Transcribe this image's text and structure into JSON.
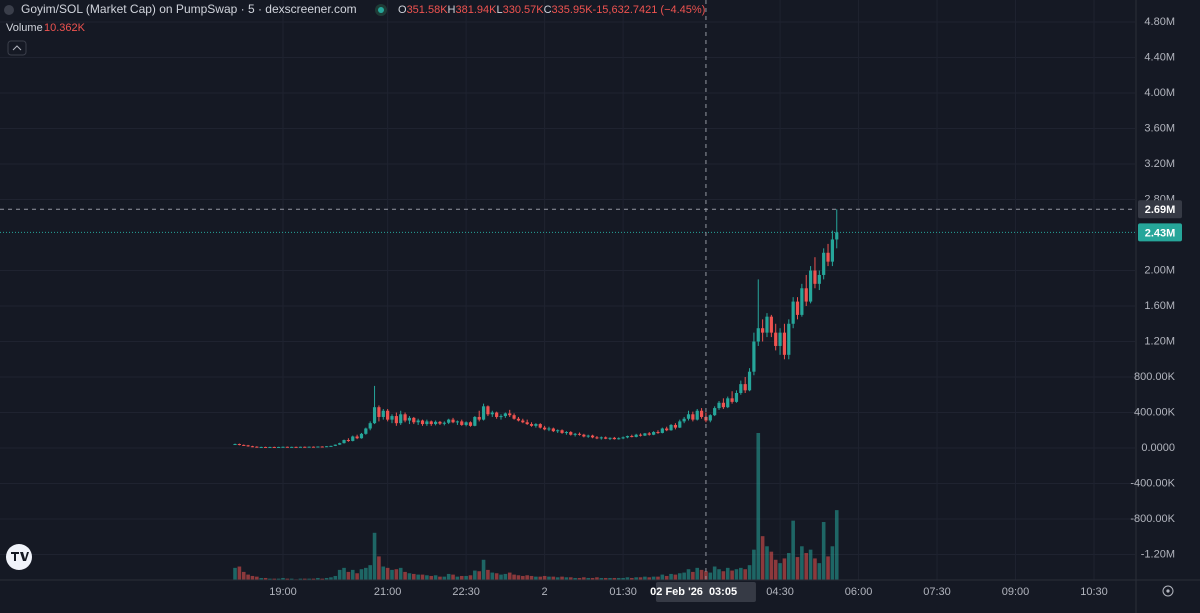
{
  "chart_data": {
    "type": "candlestick",
    "title": "Goyim/SOL (Market Cap) on PumpSwap · 5 · dexscreener.com",
    "ohlc": [
      {
        "label": "O",
        "value": "351.58K"
      },
      {
        "label": "H",
        "value": "381.94K"
      },
      {
        "label": "L",
        "value": "330.57K"
      },
      {
        "label": "C",
        "value": "335.95K"
      }
    ],
    "change": "-15,632.7421 (−4.45%)",
    "volume_label": "Volume",
    "volume_value": "10.362K",
    "up_color": "#26a69a",
    "down_color": "#ef5350",
    "grid": true,
    "xlim": [
      -264.5,
      1037
    ],
    "xticks": [
      {
        "value": 60,
        "label": "19:00"
      },
      {
        "value": 180,
        "label": "21:00"
      },
      {
        "value": 270,
        "label": "22:30"
      },
      {
        "value": 360,
        "label": "2"
      },
      {
        "value": 450,
        "label": "01:30"
      },
      {
        "value": 630,
        "label": "04:30"
      },
      {
        "value": 720,
        "label": "06:00"
      },
      {
        "value": 810,
        "label": "07:30"
      },
      {
        "value": 900,
        "label": "09:00"
      },
      {
        "value": 990,
        "label": "10:30"
      }
    ],
    "ylim": [
      -1487,
      5048
    ],
    "yticks": [
      {
        "value": 4800,
        "label": "4.80M"
      },
      {
        "value": 4400,
        "label": "4.40M"
      },
      {
        "value": 4000,
        "label": "4.00M"
      },
      {
        "value": 3600,
        "label": "3.60M"
      },
      {
        "value": 3200,
        "label": "3.20M"
      },
      {
        "value": 2800,
        "label": "2.80M"
      },
      {
        "value": 2000,
        "label": "2.00M"
      },
      {
        "value": 1600,
        "label": "1.60M"
      },
      {
        "value": 1200,
        "label": "1.20M"
      },
      {
        "value": 800,
        "label": "800.00K"
      },
      {
        "value": 400,
        "label": "400.00K"
      },
      {
        "value": 0,
        "label": "0.0000"
      },
      {
        "value": -400,
        "label": "-400.00K"
      },
      {
        "value": -800,
        "label": "-800.00K"
      },
      {
        "value": -1200,
        "label": "-1.20M"
      }
    ],
    "crosshair": {
      "x": 545,
      "y": 2690,
      "date_label": "02 Feb '26",
      "time_label": "03:05",
      "price_label": "2.69M"
    },
    "last_price": {
      "value": 2430,
      "label": "2.43M"
    },
    "candles": [
      [
        5,
        40,
        50,
        35,
        45,
        1.8
      ],
      [
        10,
        45,
        50,
        30,
        35,
        2.0
      ],
      [
        15,
        35,
        40,
        25,
        30,
        1.2
      ],
      [
        20,
        30,
        35,
        15,
        20,
        0.8
      ],
      [
        25,
        20,
        25,
        10,
        15,
        0.6
      ],
      [
        30,
        15,
        20,
        5,
        10,
        0.5
      ],
      [
        35,
        10,
        15,
        5,
        12,
        0.3
      ],
      [
        40,
        12,
        15,
        8,
        10,
        0.3
      ],
      [
        45,
        10,
        14,
        6,
        12,
        0.2
      ],
      [
        50,
        12,
        15,
        8,
        10,
        0.2
      ],
      [
        55,
        10,
        14,
        7,
        12,
        0.2
      ],
      [
        60,
        12,
        16,
        9,
        14,
        0.3
      ],
      [
        65,
        14,
        16,
        10,
        12,
        0.2
      ],
      [
        70,
        12,
        15,
        9,
        13,
        0.2
      ],
      [
        75,
        13,
        16,
        10,
        12,
        0.1
      ],
      [
        80,
        12,
        15,
        9,
        14,
        0.2
      ],
      [
        85,
        14,
        17,
        11,
        13,
        0.2
      ],
      [
        90,
        13,
        16,
        10,
        15,
        0.2
      ],
      [
        95,
        15,
        18,
        12,
        14,
        0.2
      ],
      [
        100,
        14,
        18,
        12,
        17,
        0.3
      ],
      [
        105,
        17,
        20,
        14,
        16,
        0.2
      ],
      [
        110,
        16,
        22,
        14,
        20,
        0.3
      ],
      [
        115,
        20,
        26,
        18,
        24,
        0.4
      ],
      [
        120,
        24,
        40,
        22,
        38,
        0.6
      ],
      [
        125,
        38,
        60,
        35,
        55,
        1.5
      ],
      [
        130,
        55,
        95,
        50,
        90,
        1.8
      ],
      [
        135,
        90,
        110,
        70,
        80,
        1.2
      ],
      [
        140,
        80,
        140,
        75,
        130,
        1.5
      ],
      [
        145,
        130,
        150,
        100,
        110,
        1.0
      ],
      [
        150,
        110,
        170,
        105,
        160,
        1.6
      ],
      [
        155,
        160,
        230,
        150,
        220,
        1.8
      ],
      [
        160,
        220,
        300,
        200,
        280,
        2.2
      ],
      [
        165,
        280,
        700,
        270,
        460,
        7.0
      ],
      [
        170,
        460,
        480,
        300,
        350,
        3.5
      ],
      [
        175,
        350,
        440,
        320,
        420,
        2.0
      ],
      [
        180,
        420,
        440,
        300,
        320,
        1.8
      ],
      [
        185,
        320,
        380,
        280,
        360,
        1.5
      ],
      [
        190,
        360,
        400,
        250,
        280,
        1.6
      ],
      [
        195,
        280,
        420,
        260,
        380,
        1.8
      ],
      [
        200,
        380,
        400,
        290,
        310,
        1.2
      ],
      [
        205,
        310,
        360,
        270,
        340,
        1.0
      ],
      [
        210,
        340,
        350,
        270,
        290,
        0.9
      ],
      [
        215,
        290,
        330,
        260,
        310,
        0.8
      ],
      [
        220,
        310,
        320,
        250,
        270,
        0.8
      ],
      [
        225,
        270,
        320,
        250,
        300,
        0.7
      ],
      [
        230,
        300,
        310,
        250,
        270,
        0.6
      ],
      [
        235,
        270,
        310,
        255,
        295,
        0.7
      ],
      [
        240,
        295,
        305,
        260,
        275,
        0.5
      ],
      [
        245,
        275,
        300,
        255,
        285,
        0.5
      ],
      [
        250,
        285,
        330,
        270,
        320,
        0.9
      ],
      [
        255,
        320,
        340,
        280,
        290,
        0.8
      ],
      [
        260,
        290,
        310,
        260,
        300,
        0.5
      ],
      [
        265,
        300,
        320,
        250,
        260,
        0.6
      ],
      [
        270,
        260,
        300,
        245,
        290,
        0.6
      ],
      [
        275,
        290,
        300,
        240,
        250,
        0.7
      ],
      [
        280,
        250,
        360,
        245,
        350,
        1.4
      ],
      [
        285,
        350,
        420,
        300,
        320,
        1.3
      ],
      [
        290,
        320,
        500,
        310,
        470,
        3.0
      ],
      [
        295,
        470,
        480,
        360,
        380,
        1.5
      ],
      [
        300,
        380,
        420,
        350,
        400,
        1.1
      ],
      [
        305,
        400,
        410,
        330,
        350,
        1.0
      ],
      [
        310,
        350,
        380,
        320,
        360,
        0.8
      ],
      [
        315,
        360,
        400,
        340,
        390,
        0.9
      ],
      [
        320,
        390,
        430,
        350,
        370,
        1.1
      ],
      [
        325,
        370,
        390,
        320,
        330,
        0.8
      ],
      [
        330,
        330,
        350,
        300,
        310,
        0.7
      ],
      [
        335,
        310,
        330,
        280,
        290,
        0.6
      ],
      [
        340,
        290,
        320,
        260,
        270,
        0.7
      ],
      [
        345,
        270,
        290,
        240,
        250,
        0.6
      ],
      [
        350,
        250,
        280,
        230,
        270,
        0.5
      ],
      [
        355,
        270,
        280,
        220,
        230,
        0.5
      ],
      [
        360,
        230,
        250,
        200,
        210,
        0.6
      ],
      [
        365,
        210,
        240,
        190,
        220,
        0.5
      ],
      [
        370,
        220,
        230,
        180,
        190,
        0.5
      ],
      [
        375,
        190,
        210,
        170,
        200,
        0.4
      ],
      [
        380,
        200,
        210,
        160,
        170,
        0.5
      ],
      [
        385,
        170,
        190,
        150,
        180,
        0.4
      ],
      [
        390,
        180,
        190,
        140,
        150,
        0.4
      ],
      [
        395,
        150,
        170,
        130,
        160,
        0.3
      ],
      [
        400,
        160,
        175,
        140,
        150,
        0.3
      ],
      [
        405,
        150,
        160,
        120,
        130,
        0.4
      ],
      [
        410,
        130,
        150,
        115,
        140,
        0.3
      ],
      [
        415,
        140,
        150,
        110,
        120,
        0.3
      ],
      [
        420,
        120,
        135,
        100,
        110,
        0.4
      ],
      [
        425,
        110,
        130,
        95,
        120,
        0.3
      ],
      [
        430,
        120,
        130,
        100,
        105,
        0.3
      ],
      [
        435,
        105,
        120,
        90,
        115,
        0.3
      ],
      [
        440,
        115,
        125,
        95,
        100,
        0.3
      ],
      [
        445,
        100,
        120,
        95,
        110,
        0.3
      ],
      [
        450,
        110,
        130,
        100,
        120,
        0.3
      ],
      [
        455,
        120,
        140,
        110,
        135,
        0.4
      ],
      [
        460,
        135,
        150,
        120,
        125,
        0.3
      ],
      [
        465,
        125,
        160,
        120,
        150,
        0.4
      ],
      [
        470,
        150,
        165,
        130,
        140,
        0.4
      ],
      [
        475,
        140,
        170,
        135,
        165,
        0.5
      ],
      [
        480,
        165,
        180,
        140,
        150,
        0.4
      ],
      [
        485,
        150,
        190,
        145,
        180,
        0.5
      ],
      [
        490,
        180,
        200,
        160,
        170,
        0.5
      ],
      [
        495,
        170,
        230,
        165,
        220,
        0.8
      ],
      [
        500,
        220,
        240,
        190,
        200,
        0.6
      ],
      [
        505,
        200,
        270,
        195,
        260,
        0.9
      ],
      [
        510,
        260,
        280,
        210,
        230,
        0.8
      ],
      [
        515,
        230,
        320,
        225,
        300,
        1.0
      ],
      [
        520,
        300,
        350,
        280,
        330,
        1.1
      ],
      [
        525,
        330,
        420,
        310,
        380,
        1.6
      ],
      [
        530,
        380,
        410,
        300,
        320,
        1.2
      ],
      [
        535,
        320,
        440,
        310,
        420,
        1.8
      ],
      [
        540,
        420,
        450,
        330,
        350,
        1.5
      ],
      [
        545,
        350,
        400,
        290,
        310,
        1.3
      ],
      [
        550,
        310,
        380,
        290,
        370,
        1.1
      ],
      [
        555,
        370,
        470,
        360,
        450,
        2.0
      ],
      [
        560,
        450,
        530,
        430,
        510,
        1.6
      ],
      [
        565,
        510,
        560,
        440,
        460,
        1.3
      ],
      [
        570,
        460,
        580,
        450,
        560,
        1.8
      ],
      [
        575,
        560,
        640,
        500,
        520,
        1.4
      ],
      [
        580,
        520,
        650,
        510,
        620,
        1.6
      ],
      [
        585,
        620,
        760,
        600,
        720,
        1.8
      ],
      [
        590,
        720,
        800,
        620,
        650,
        1.6
      ],
      [
        595,
        650,
        900,
        640,
        860,
        2.2
      ],
      [
        600,
        860,
        1300,
        820,
        1200,
        4.5
      ],
      [
        605,
        1200,
        1900,
        1150,
        1350,
        21.8
      ],
      [
        610,
        1350,
        1450,
        1200,
        1300,
        6.5
      ],
      [
        615,
        1300,
        1520,
        1250,
        1480,
        5.0
      ],
      [
        620,
        1480,
        1500,
        1250,
        1300,
        4.2
      ],
      [
        625,
        1300,
        1400,
        1100,
        1150,
        3.0
      ],
      [
        630,
        1150,
        1350,
        1050,
        1300,
        2.5
      ],
      [
        635,
        1300,
        1400,
        1000,
        1050,
        3.2
      ],
      [
        640,
        1050,
        1450,
        1000,
        1400,
        4.0
      ],
      [
        645,
        1400,
        1700,
        1350,
        1650,
        8.8
      ],
      [
        650,
        1650,
        1700,
        1450,
        1500,
        3.4
      ],
      [
        655,
        1500,
        1850,
        1480,
        1800,
        5.0
      ],
      [
        660,
        1800,
        1950,
        1600,
        1650,
        4.0
      ],
      [
        665,
        1650,
        2050,
        1630,
        2000,
        4.5
      ],
      [
        670,
        2000,
        2150,
        1800,
        1850,
        3.2
      ],
      [
        675,
        1850,
        2000,
        1780,
        1950,
        2.5
      ],
      [
        680,
        1950,
        2250,
        1900,
        2200,
        8.6
      ],
      [
        685,
        2200,
        2300,
        2050,
        2100,
        3.5
      ],
      [
        690,
        2100,
        2450,
        2050,
        2350,
        5.0
      ],
      [
        695,
        2350,
        2690,
        2250,
        2430,
        10.362
      ]
    ]
  }
}
